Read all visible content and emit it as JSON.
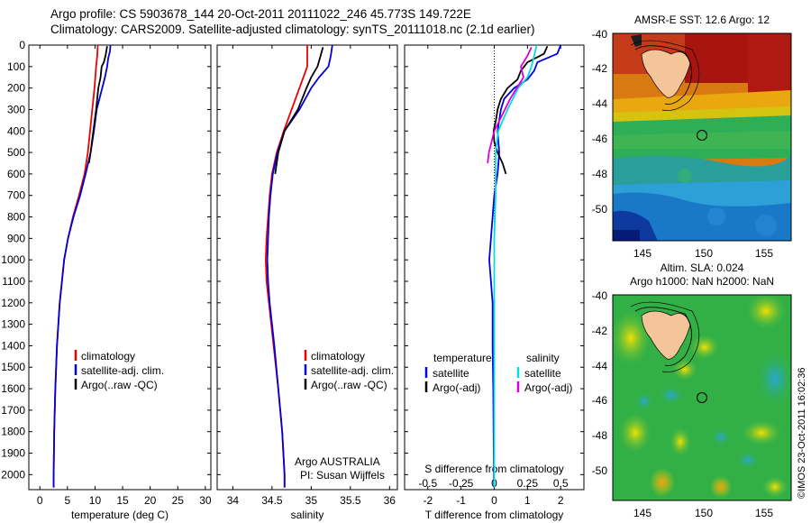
{
  "header": {
    "line1": "Argo profile: CS 5903678_144 20-Oct-2011 20111022_246 45.773S 149.722E",
    "line2": "Climatology: CARS2009. Satellite-adjusted climatology: synTS_20111018.nc (2.1d earlier)"
  },
  "colors": {
    "climatology": "#ee0000",
    "satellite": "#0000dd",
    "argo": "#000000",
    "sal_satellite": "#00e0e0",
    "sal_argo": "#dd00dd"
  },
  "chart_data": [
    {
      "type": "line",
      "panel": "temperature",
      "xlabel": "temperature (deg C)",
      "xlim": [
        -2,
        31
      ],
      "xticks": [
        0,
        5,
        10,
        15,
        20,
        25,
        30
      ],
      "ylim": [
        2070,
        0
      ],
      "yticks": [
        0,
        100,
        200,
        300,
        400,
        500,
        600,
        700,
        800,
        900,
        1000,
        1100,
        1200,
        1300,
        1400,
        1500,
        1600,
        1700,
        1800,
        1900,
        2000
      ],
      "legend": [
        "climatology",
        "satellite-adj. clim.",
        "Argo(..raw -QC)"
      ],
      "series": [
        {
          "name": "climatology",
          "color": "#ee0000",
          "depth": [
            0,
            50,
            100,
            200,
            300,
            400,
            500,
            600,
            700,
            800,
            900,
            1000,
            1200,
            1400,
            1600,
            1800,
            2000,
            2060
          ],
          "values": [
            10.5,
            10.4,
            10.2,
            9.9,
            9.5,
            9.1,
            8.7,
            8.1,
            7.1,
            6.0,
            5.1,
            4.4,
            3.6,
            3.1,
            2.8,
            2.6,
            2.5,
            2.5
          ]
        },
        {
          "name": "satellite-adj. clim.",
          "color": "#0000dd",
          "depth": [
            0,
            30,
            60,
            100,
            150,
            200,
            300,
            400,
            500,
            600,
            700,
            800,
            900,
            1000,
            1200,
            1400,
            1600,
            1800,
            2000,
            2060
          ],
          "values": [
            12.8,
            12.7,
            12.4,
            12.2,
            11.8,
            11.3,
            10.3,
            9.8,
            9.2,
            8.3,
            7.3,
            6.1,
            5.1,
            4.4,
            3.6,
            3.1,
            2.8,
            2.6,
            2.5,
            2.5
          ]
        },
        {
          "name": "Argo(..raw -QC)",
          "color": "#000000",
          "depth": [
            5,
            20,
            50,
            80,
            100,
            150,
            200,
            300,
            400,
            500,
            550
          ],
          "values": [
            12.2,
            12.1,
            11.9,
            11.6,
            11.2,
            11.0,
            10.6,
            10.2,
            9.7,
            9.2,
            8.9
          ]
        }
      ]
    },
    {
      "type": "line",
      "panel": "salinity",
      "xlabel": "salinity",
      "xlim": [
        33.8,
        36.1
      ],
      "xticks": [
        34,
        34.5,
        35,
        35.5,
        36
      ],
      "ylim": [
        2070,
        0
      ],
      "legend": [
        "climatology",
        "satellite-adj. clim.",
        "Argo(..raw -QC)"
      ],
      "annotation": [
        "Argo AUSTRALIA",
        "PI: Susan Wijffels"
      ],
      "series": [
        {
          "name": "climatology",
          "color": "#ee0000",
          "depth": [
            0,
            100,
            200,
            300,
            400,
            500,
            600,
            700,
            800,
            900,
            1000,
            1100,
            1200,
            1400,
            1600,
            1800,
            2000,
            2060
          ],
          "values": [
            34.95,
            34.95,
            34.85,
            34.75,
            34.65,
            34.56,
            34.5,
            34.47,
            34.45,
            34.43,
            34.42,
            34.43,
            34.46,
            34.52,
            34.58,
            34.63,
            34.66,
            34.66
          ]
        },
        {
          "name": "satellite-adj. clim.",
          "color": "#0000dd",
          "depth": [
            0,
            50,
            100,
            150,
            200,
            300,
            400,
            500,
            600,
            700,
            800,
            900,
            1000,
            1100,
            1200,
            1400,
            1600,
            1800,
            2000,
            2060
          ],
          "values": [
            35.27,
            35.25,
            35.22,
            35.1,
            35.0,
            34.85,
            34.66,
            34.57,
            34.51,
            34.48,
            34.46,
            34.45,
            34.44,
            34.45,
            34.47,
            34.53,
            34.58,
            34.63,
            34.66,
            34.66
          ]
        },
        {
          "name": "Argo(..raw -QC)",
          "color": "#000000",
          "depth": [
            10,
            50,
            100,
            150,
            200,
            300,
            400,
            500,
            600
          ],
          "values": [
            35.15,
            35.12,
            35.08,
            35.0,
            34.94,
            34.83,
            34.66,
            34.58,
            34.54
          ]
        }
      ]
    },
    {
      "type": "line",
      "panel": "difference",
      "xlabel": "T difference from climatology",
      "xlabel2": "S difference from climatology",
      "xlim": [
        -2.7,
        2.7
      ],
      "xticks": [
        -2,
        -1,
        0,
        1,
        2
      ],
      "x2ticks": [
        -0.5,
        -0.25,
        0,
        0.25,
        0.5
      ],
      "ylim": [
        2070,
        0
      ],
      "legend_titles": [
        "temperature",
        "salinity"
      ],
      "legend_left": [
        "satellite",
        "Argo(-adj)"
      ],
      "legend_right": [
        "satellite",
        "Argo(-adj)"
      ],
      "series": [
        {
          "name": "T satellite",
          "color": "#0000dd",
          "depth": [
            0,
            40,
            80,
            120,
            160,
            200,
            250,
            300,
            400,
            500,
            600,
            700,
            800,
            900,
            1000,
            1100,
            1200,
            1400,
            1600,
            1800,
            2000,
            2060
          ],
          "values": [
            2.0,
            1.9,
            1.3,
            1.2,
            1.0,
            0.6,
            0.3,
            0.2,
            0.1,
            0.15,
            0.1,
            0.0,
            -0.05,
            -0.1,
            -0.15,
            -0.1,
            -0.05,
            -0.05,
            -0.03,
            -0.02,
            -0.01,
            -0.01
          ]
        },
        {
          "name": "T Argo(-adj)",
          "color": "#000000",
          "depth": [
            5,
            40,
            80,
            120,
            160,
            200,
            250,
            300,
            350,
            400,
            450,
            500,
            550,
            600
          ],
          "values": [
            1.6,
            1.5,
            1.0,
            0.8,
            0.7,
            0.4,
            0.2,
            0.1,
            0.05,
            -0.02,
            0.0,
            0.1,
            0.25,
            0.35
          ]
        },
        {
          "name": "S satellite",
          "color": "#00e0e0",
          "depth": [
            0,
            50,
            100,
            150,
            200,
            300,
            400,
            500,
            700,
            900,
            1100,
            1300,
            1500,
            1700,
            1900,
            2060
          ],
          "values": [
            0.32,
            0.3,
            0.28,
            0.25,
            0.18,
            0.1,
            0.03,
            0.01,
            0.01,
            0.0,
            0.0,
            0.0,
            0.0,
            0.0,
            0.0,
            0.0
          ]
        },
        {
          "name": "S Argo(-adj)",
          "color": "#dd00dd",
          "depth": [
            10,
            50,
            100,
            150,
            200,
            250,
            300,
            400,
            500,
            550
          ],
          "values": [
            0.28,
            0.25,
            0.2,
            0.22,
            0.17,
            0.12,
            0.08,
            0.0,
            -0.04,
            -0.05
          ]
        }
      ]
    }
  ],
  "maps": {
    "top": {
      "title": "AMSR-E SST: 12.6 Argo: 12",
      "xticks": [
        "145",
        "150",
        "155"
      ],
      "yticks": [
        "-40",
        "-42",
        "-44",
        "-46",
        "-48",
        "-50"
      ]
    },
    "bottom": {
      "title1": "Altim. SLA: 0.024",
      "title2": "Argo h1000: NaN h2000: NaN",
      "xticks": [
        "145",
        "150",
        "155"
      ],
      "yticks": [
        "-40",
        "-42",
        "-44",
        "-46",
        "-48",
        "-50"
      ]
    }
  },
  "stamp": "©IMOS 23-Oct-2011 16:02:36"
}
